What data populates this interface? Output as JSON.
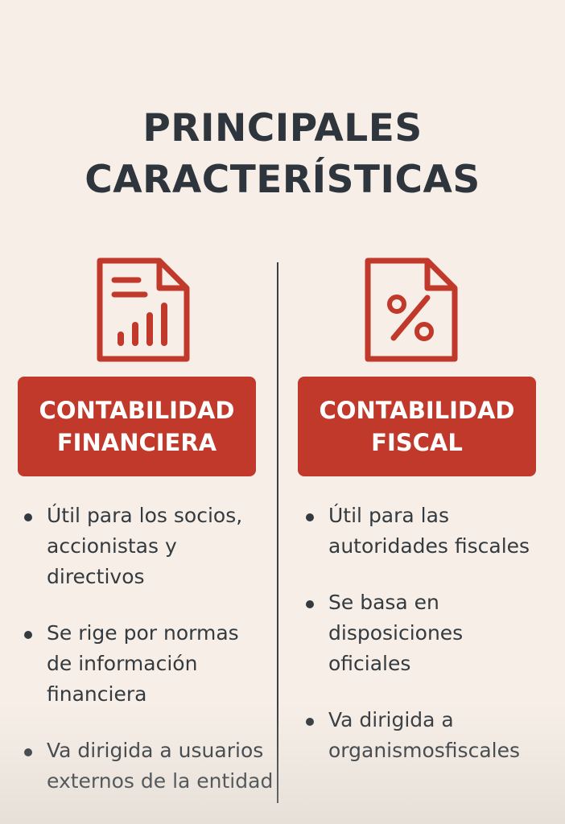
{
  "title": {
    "line1": "PRINCIPALES",
    "line2": "CARACTERÍSTICAS"
  },
  "colors": {
    "accent": "#c0392b",
    "text": "#333a40",
    "background": "#f7efe7"
  },
  "left": {
    "icon": "financial-report-icon",
    "label_line1": "CONTABILIDAD",
    "label_line2": "FINANCIERA",
    "items": [
      {
        "lines": [
          "Útil para los socios,",
          "accionistas y",
          "directivos"
        ]
      },
      {
        "lines": [
          "Se rige por normas",
          "de información",
          "financiera"
        ]
      },
      {
        "lines": [
          "Va dirigida a usuarios",
          "externos de la entidad"
        ]
      }
    ]
  },
  "right": {
    "icon": "percent-document-icon",
    "label_line1": "CONTABILIDAD",
    "label_line2": "FISCAL",
    "items": [
      {
        "lines": [
          "Útil para las",
          "autoridades fiscales"
        ]
      },
      {
        "lines": [
          "Se basa en",
          "disposiciones",
          "oficiales"
        ]
      },
      {
        "lines": [
          "Va dirigida a",
          "organismosfiscales"
        ]
      }
    ]
  }
}
